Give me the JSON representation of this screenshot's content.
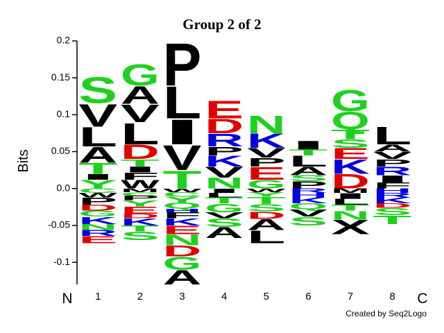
{
  "chart_data": {
    "type": "logo",
    "title": "Group 2 of 2",
    "y_label": "Bits",
    "n_label": "N",
    "c_label": "C",
    "credit": "Created by Seq2Logo",
    "categories": [
      "1",
      "2",
      "3",
      "4",
      "5",
      "6",
      "7",
      "8"
    ],
    "ylim": [
      -0.13,
      0.2
    ],
    "yticks": [
      0.2,
      0.15,
      0.1,
      0.05,
      {
        "value": 0,
        "label": "0.0"
      },
      -0.05,
      -0.1
    ],
    "letter_colors": {
      "green": "#1fd11f",
      "red": "#e00000",
      "blue": "#0000e0",
      "black": "#000000",
      "green_letters": "STGNQYC",
      "red_letters": "DE",
      "blue_letters": "KRH"
    },
    "stacks": [
      {
        "above": [
          {
            "letter": "Y",
            "value": 0.012
          },
          {
            "letter": "I",
            "value": 0.008
          },
          {
            "letter": "T",
            "value": 0.015
          },
          {
            "letter": "A",
            "value": 0.022
          },
          {
            "letter": "L",
            "value": 0.027
          },
          {
            "letter": "V",
            "value": 0.032
          },
          {
            "letter": "S",
            "value": 0.037
          }
        ],
        "below": [
          {
            "letter": "C",
            "value": -0.006
          },
          {
            "letter": "W",
            "value": -0.006
          },
          {
            "letter": "P",
            "value": -0.01
          },
          {
            "letter": "D",
            "value": -0.008
          },
          {
            "letter": "G",
            "value": -0.008
          },
          {
            "letter": "K",
            "value": -0.01
          },
          {
            "letter": "N",
            "value": -0.008
          },
          {
            "letter": "R",
            "value": -0.008
          },
          {
            "letter": "E",
            "value": -0.01
          }
        ]
      },
      {
        "above": [
          {
            "letter": "W",
            "value": 0.012
          },
          {
            "letter": "F",
            "value": 0.01
          },
          {
            "letter": "I",
            "value": 0.008
          },
          {
            "letter": "T",
            "value": 0.01
          },
          {
            "letter": "D",
            "value": 0.02
          },
          {
            "letter": "L",
            "value": 0.03
          },
          {
            "letter": "V",
            "value": 0.025
          },
          {
            "letter": "A",
            "value": 0.025
          },
          {
            "letter": "G",
            "value": 0.03
          }
        ],
        "below": [
          {
            "letter": "M",
            "value": -0.005
          },
          {
            "letter": "C",
            "value": -0.005
          },
          {
            "letter": "P",
            "value": -0.006
          },
          {
            "letter": "Y",
            "value": -0.008
          },
          {
            "letter": "E",
            "value": -0.01
          },
          {
            "letter": "D",
            "value": -0.006
          },
          {
            "letter": "K",
            "value": -0.01
          },
          {
            "letter": "T",
            "value": -0.008
          },
          {
            "letter": "S",
            "value": -0.012
          }
        ]
      },
      {
        "above": [
          {
            "letter": "T",
            "value": 0.025
          },
          {
            "letter": "V",
            "value": 0.035
          },
          {
            "letter": "I",
            "value": 0.035
          },
          {
            "letter": "L",
            "value": 0.045
          },
          {
            "letter": "P",
            "value": 0.06
          }
        ],
        "below": [
          {
            "letter": "W",
            "value": -0.005
          },
          {
            "letter": "C",
            "value": -0.006
          },
          {
            "letter": "Y",
            "value": -0.008
          },
          {
            "letter": "Q",
            "value": -0.008
          },
          {
            "letter": "H",
            "value": -0.005
          },
          {
            "letter": "F",
            "value": -0.008
          },
          {
            "letter": "K",
            "value": -0.01
          },
          {
            "letter": "E",
            "value": -0.012
          },
          {
            "letter": "N",
            "value": -0.015
          },
          {
            "letter": "D",
            "value": -0.015
          },
          {
            "letter": "G",
            "value": -0.018
          },
          {
            "letter": "A",
            "value": -0.02
          }
        ]
      },
      {
        "above": [
          {
            "letter": "N",
            "value": 0.015
          },
          {
            "letter": "V",
            "value": 0.015
          },
          {
            "letter": "K",
            "value": 0.015
          },
          {
            "letter": "P",
            "value": 0.012
          },
          {
            "letter": "R",
            "value": 0.018
          },
          {
            "letter": "D",
            "value": 0.02
          },
          {
            "letter": "E",
            "value": 0.025
          }
        ],
        "below": [
          {
            "letter": "I",
            "value": -0.006
          },
          {
            "letter": "L",
            "value": -0.006
          },
          {
            "letter": "T",
            "value": -0.008
          },
          {
            "letter": "G",
            "value": -0.012
          },
          {
            "letter": "V",
            "value": -0.008
          },
          {
            "letter": "S",
            "value": -0.012
          },
          {
            "letter": "A",
            "value": -0.015
          }
        ]
      },
      {
        "above": [
          {
            "letter": "G",
            "value": 0.012
          },
          {
            "letter": "E",
            "value": 0.018
          },
          {
            "letter": "P",
            "value": 0.012
          },
          {
            "letter": "V",
            "value": 0.013
          },
          {
            "letter": "K",
            "value": 0.02
          },
          {
            "letter": "N",
            "value": 0.025
          }
        ],
        "below": [
          {
            "letter": "W",
            "value": -0.005
          },
          {
            "letter": "Y",
            "value": -0.006
          },
          {
            "letter": "T",
            "value": -0.01
          },
          {
            "letter": "S",
            "value": -0.01
          },
          {
            "letter": "D",
            "value": -0.01
          },
          {
            "letter": "A",
            "value": -0.015
          },
          {
            "letter": "L",
            "value": -0.018
          }
        ]
      },
      {
        "above": [
          {
            "letter": "P",
            "value": 0.01
          },
          {
            "letter": "S",
            "value": 0.008
          },
          {
            "letter": "A",
            "value": 0.012
          },
          {
            "letter": "L",
            "value": 0.015
          },
          {
            "letter": "T",
            "value": 0.008
          },
          {
            "letter": "I",
            "value": 0.012
          }
        ],
        "below": [
          {
            "letter": "R",
            "value": -0.006
          },
          {
            "letter": "H",
            "value": -0.006
          },
          {
            "letter": "K",
            "value": -0.008
          },
          {
            "letter": "Q",
            "value": -0.008
          },
          {
            "letter": "V",
            "value": -0.01
          },
          {
            "letter": "S",
            "value": -0.012
          }
        ]
      },
      {
        "above": [
          {
            "letter": "D",
            "value": 0.02
          },
          {
            "letter": "K",
            "value": 0.02
          },
          {
            "letter": "E",
            "value": 0.015
          },
          {
            "letter": "S",
            "value": 0.012
          },
          {
            "letter": "T",
            "value": 0.013
          },
          {
            "letter": "Q",
            "value": 0.025
          },
          {
            "letter": "G",
            "value": 0.03
          }
        ],
        "below": [
          {
            "letter": "M",
            "value": -0.006
          },
          {
            "letter": "I",
            "value": -0.008
          },
          {
            "letter": "L",
            "value": -0.008
          },
          {
            "letter": "T",
            "value": -0.008
          },
          {
            "letter": "N",
            "value": -0.012
          },
          {
            "letter": "X",
            "value": -0.02
          }
        ]
      },
      {
        "above": [
          {
            "letter": "F",
            "value": 0.008
          },
          {
            "letter": "I",
            "value": 0.01
          },
          {
            "letter": "R",
            "value": 0.012
          },
          {
            "letter": "P",
            "value": 0.01
          },
          {
            "letter": "V",
            "value": 0.01
          },
          {
            "letter": "A",
            "value": 0.01
          },
          {
            "letter": "L",
            "value": 0.025
          }
        ],
        "below": [
          {
            "letter": "H",
            "value": -0.006
          },
          {
            "letter": "R",
            "value": -0.006
          },
          {
            "letter": "K",
            "value": -0.008
          },
          {
            "letter": "D",
            "value": -0.006
          },
          {
            "letter": "S",
            "value": -0.01
          },
          {
            "letter": "T",
            "value": -0.012
          }
        ]
      }
    ]
  }
}
